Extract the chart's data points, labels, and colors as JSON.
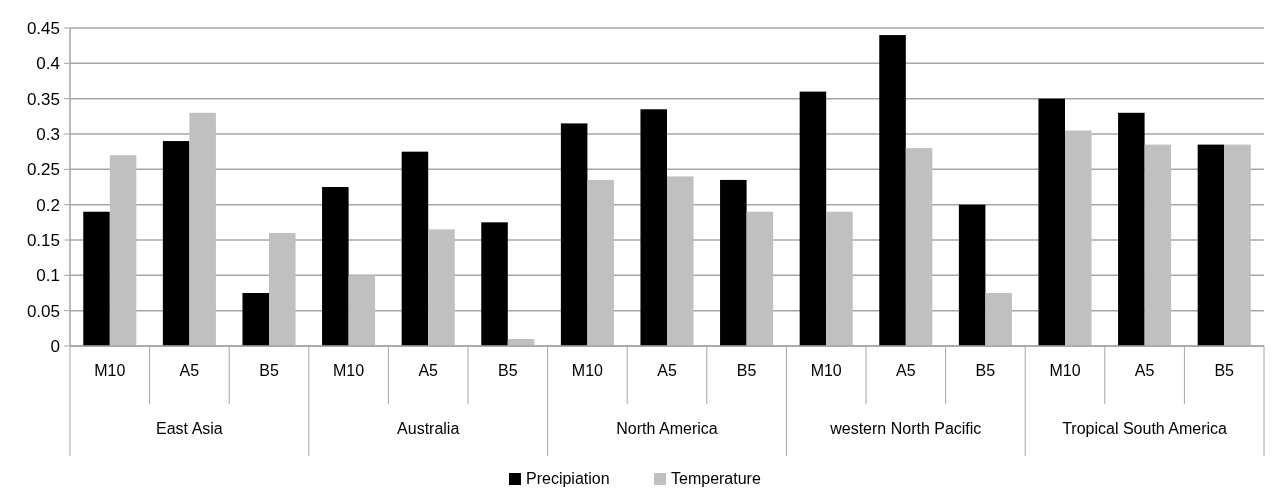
{
  "chart_data": {
    "type": "bar",
    "categories": [
      "M10",
      "A5",
      "B5",
      "M10",
      "A5",
      "B5",
      "M10",
      "A5",
      "B5",
      "M10",
      "A5",
      "B5",
      "M10",
      "A5",
      "B5"
    ],
    "annotations": [
      "East Asia",
      "Australia",
      "North America",
      "western North Pacific",
      "Tropical South America"
    ],
    "series": [
      {
        "name": "Precipiation",
        "color": "#000000",
        "values": [
          0.19,
          0.29,
          0.075,
          0.225,
          0.275,
          0.175,
          0.315,
          0.335,
          0.235,
          0.36,
          0.44,
          0.2,
          0.35,
          0.33,
          0.285
        ]
      },
      {
        "name": "Temperature",
        "color": "#c0c0c0",
        "values": [
          0.27,
          0.33,
          0.16,
          0.1,
          0.165,
          0.01,
          0.235,
          0.24,
          0.19,
          0.19,
          0.28,
          0.075,
          0.305,
          0.285,
          0.285
        ]
      }
    ],
    "ylim": [
      0,
      0.45
    ],
    "yticks": [
      0,
      0.05,
      0.1,
      0.15,
      0.2,
      0.25,
      0.3,
      0.35,
      0.4,
      0.45
    ],
    "grid": "y",
    "legend": "bottom"
  }
}
